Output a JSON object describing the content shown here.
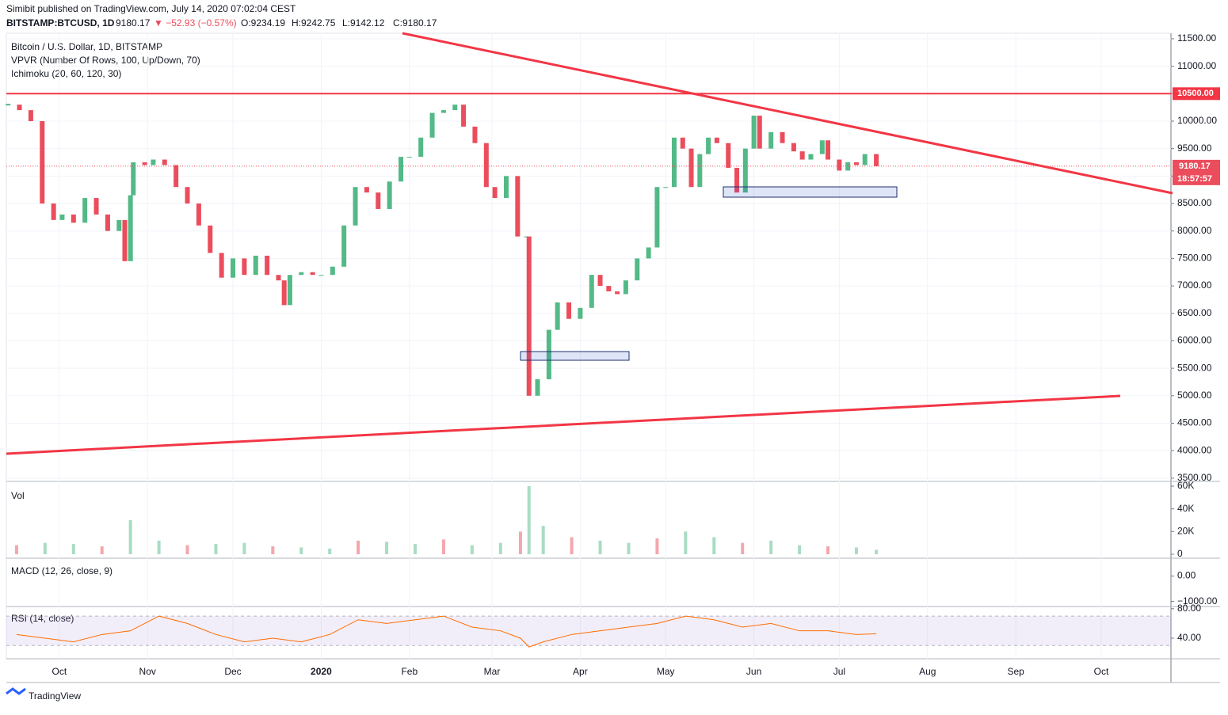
{
  "header": {
    "publisher": "Simibit published on TradingView.com, July 14, 2020 07:02:04 CEST",
    "symbol": "BITSTAMP:BTCUSD, 1D",
    "last": "9180.17",
    "change": "▼ −52.93 (−0.57%)",
    "open": "O:9234.19",
    "high": "H:9242.75",
    "low": "L:9142.12",
    "close": "C:9180.17"
  },
  "footer": "TradingView",
  "chart_data": {
    "type": "candlestick",
    "title": "Bitcoin / U.S. Dollar, 1D, BITSTAMP",
    "indicators": [
      "VPVR (Number Of Rows, 100, Up/Down, 70)",
      "Ichimoku (20, 60, 120, 30)"
    ],
    "x": [
      -18,
      -14,
      -10,
      -6,
      -2,
      1,
      5,
      9,
      13,
      17,
      21,
      23,
      25,
      26,
      30,
      33,
      37,
      41,
      45,
      49,
      53,
      57,
      61,
      65,
      69,
      73,
      77,
      79,
      81,
      85,
      89,
      92,
      96,
      100,
      104,
      108,
      112,
      116,
      120,
      123,
      127,
      131,
      135,
      139,
      142,
      146,
      150,
      153,
      157,
      161,
      164,
      165,
      168,
      172,
      175,
      179,
      183,
      187,
      190,
      193,
      196,
      199,
      203,
      207,
      210,
      213,
      216,
      219,
      222,
      225,
      228,
      231,
      235,
      238,
      241,
      244,
      246,
      250,
      254,
      258,
      261,
      264,
      268,
      270,
      274,
      277,
      280,
      283,
      287
    ],
    "values": [
      10300,
      10200,
      10000,
      8500,
      8200,
      8300,
      8150,
      8600,
      8300,
      8000,
      8200,
      7450,
      8650,
      9250,
      9200,
      9300,
      9200,
      8800,
      8500,
      8100,
      7600,
      7150,
      7500,
      7200,
      7550,
      7200,
      7100,
      6650,
      7200,
      7250,
      7200,
      7200,
      7350,
      8100,
      8800,
      8700,
      8400,
      8900,
      9350,
      9350,
      9700,
      10150,
      10200,
      10300,
      9900,
      9600,
      8800,
      8600,
      9000,
      7900,
      7900,
      5000,
      5300,
      6200,
      6700,
      6400,
      6600,
      7200,
      7000,
      6900,
      6850,
      7100,
      7500,
      7700,
      8800,
      8800,
      9700,
      9500,
      8800,
      9400,
      9700,
      9600,
      9150,
      8700,
      9500,
      10100,
      9500,
      9800,
      9600,
      9450,
      9300,
      9400,
      9650,
      9300,
      9100,
      9250,
      9200,
      9400,
      9180.17
    ],
    "up_color": "#53b987",
    "down_color": "#eb4d5c",
    "xlim": [
      -18.6,
      390.5
    ],
    "xticks": [
      {
        "value": 0,
        "label": "Oct"
      },
      {
        "value": 31,
        "label": "Nov"
      },
      {
        "value": 61,
        "label": "Dec"
      },
      {
        "value": 92,
        "label": "2020"
      },
      {
        "value": 123,
        "label": "Feb"
      },
      {
        "value": 152,
        "label": "Mar"
      },
      {
        "value": 183,
        "label": "Apr"
      },
      {
        "value": 213,
        "label": "May"
      },
      {
        "value": 244,
        "label": "Jun"
      },
      {
        "value": 274,
        "label": "Jul"
      },
      {
        "value": 305,
        "label": "Aug"
      },
      {
        "value": 336,
        "label": "Sep"
      },
      {
        "value": 366,
        "label": "Oct"
      }
    ],
    "ylim": [
      3440,
      11600
    ],
    "yticks": [
      {
        "value": 3500,
        "label": "3500.00"
      },
      {
        "value": 4000,
        "label": "4000.00"
      },
      {
        "value": 4500,
        "label": "4500.00"
      },
      {
        "value": 5000,
        "label": "5000.00"
      },
      {
        "value": 5500,
        "label": "5500.00"
      },
      {
        "value": 6000,
        "label": "6000.00"
      },
      {
        "value": 6500,
        "label": "6500.00"
      },
      {
        "value": 7000,
        "label": "7000.00"
      },
      {
        "value": 7500,
        "label": "7500.00"
      },
      {
        "value": 8000,
        "label": "8000.00"
      },
      {
        "value": 8500,
        "label": "8500.00"
      },
      {
        "value": 9000,
        "label": "9000.00"
      },
      {
        "value": 9500,
        "label": "9500.00"
      },
      {
        "value": 10000,
        "label": "10000.00"
      },
      {
        "value": 10500,
        "label": "10500.00"
      },
      {
        "value": 11000,
        "label": "11000.00"
      },
      {
        "value": 11500,
        "label": "11500.00"
      }
    ],
    "grid": true,
    "hline": {
      "value": 10500,
      "label": "10500.00",
      "color": "#f23645"
    },
    "last_price": {
      "value": 9180.17,
      "label": "9180.17",
      "countdown": "18:57:57",
      "color": "#eb4d5c"
    },
    "volume": {
      "title": "Vol",
      "x": [
        -15,
        -5,
        5,
        15,
        25,
        35,
        45,
        55,
        65,
        75,
        85,
        95,
        105,
        115,
        125,
        135,
        145,
        155,
        162,
        165,
        170,
        180,
        190,
        200,
        210,
        220,
        230,
        240,
        250,
        260,
        270,
        280,
        287
      ],
      "values": [
        8000,
        10000,
        9000,
        7000,
        30000,
        12000,
        8000,
        9000,
        10000,
        7000,
        6000,
        5000,
        12000,
        11000,
        9000,
        13000,
        8000,
        10000,
        20000,
        60000,
        25000,
        15000,
        12000,
        10000,
        14000,
        20000,
        15000,
        10000,
        12000,
        8000,
        7000,
        6000,
        4000
      ],
      "ylim": [
        -3500,
        64200
      ],
      "yticks": [
        0,
        {
          "value": 20000,
          "label": "20K"
        },
        {
          "value": 40000,
          "label": "40K"
        },
        {
          "value": 60000,
          "label": "60K"
        }
      ]
    },
    "macd": {
      "title": "MACD (12, 26, close, 9)",
      "ylim": [
        -1200,
        700
      ],
      "yticks": [
        {
          "value": -1000,
          "label": "−1000.00"
        },
        {
          "value": 0,
          "label": "0.00"
        }
      ]
    },
    "rsi": {
      "title": "RSI (14, close)",
      "x": [
        -15,
        -5,
        5,
        15,
        25,
        35,
        45,
        55,
        65,
        75,
        85,
        95,
        105,
        115,
        125,
        135,
        145,
        155,
        162,
        165,
        170,
        180,
        190,
        200,
        210,
        220,
        230,
        240,
        250,
        260,
        270,
        280,
        287
      ],
      "values": [
        45,
        40,
        35,
        45,
        50,
        70,
        60,
        45,
        35,
        40,
        35,
        45,
        65,
        60,
        65,
        70,
        55,
        50,
        40,
        28,
        35,
        45,
        50,
        55,
        60,
        70,
        65,
        55,
        60,
        50,
        50,
        45,
        46
      ],
      "color": "#ff6d00",
      "band": [
        30,
        70
      ],
      "ylim": [
        12,
        83
      ],
      "yticks": [
        {
          "value": 40,
          "label": "40.00"
        },
        {
          "value": 80,
          "label": "80.00"
        }
      ]
    }
  }
}
